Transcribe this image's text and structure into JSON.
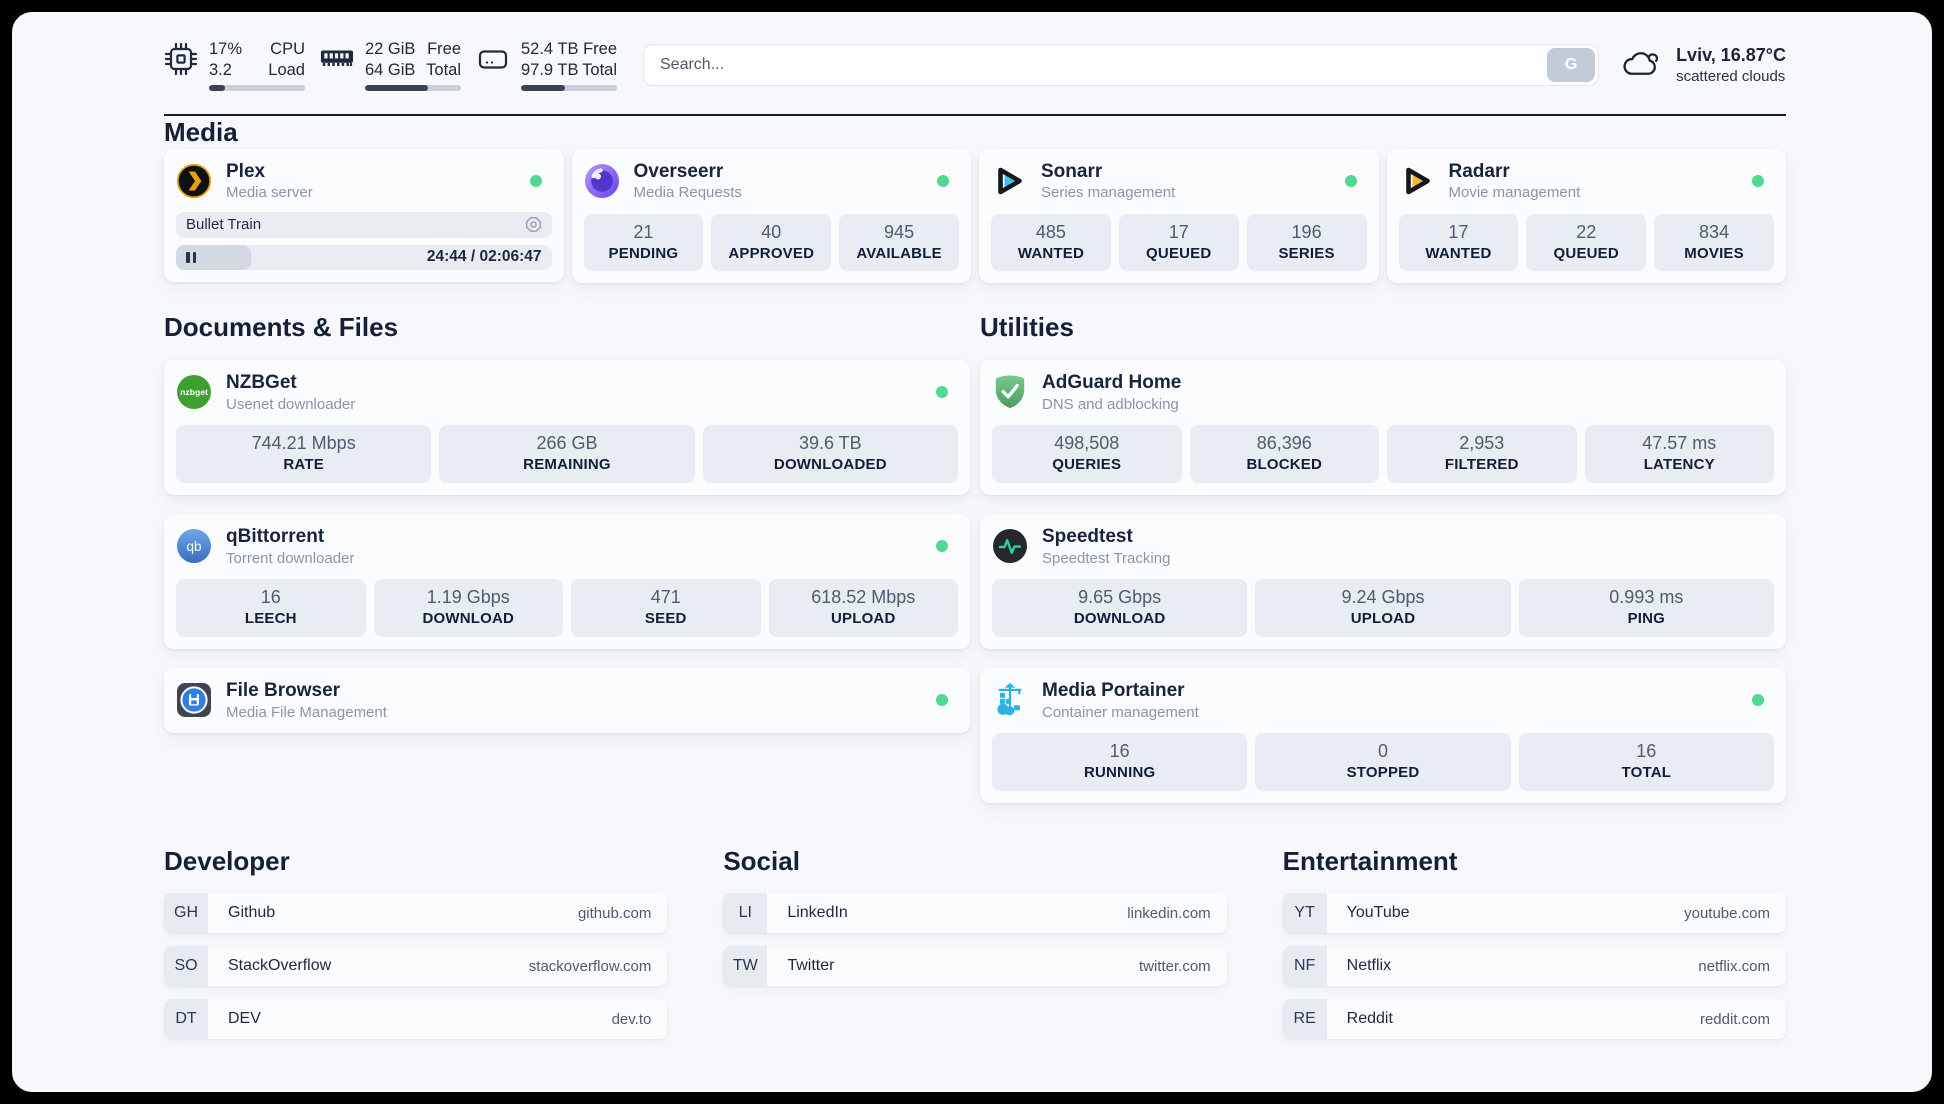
{
  "header": {
    "cpu": {
      "value": "17%",
      "value2": "3.2",
      "label": "CPU",
      "label2": "Load",
      "fill": 17
    },
    "ram": {
      "value": "22 GiB",
      "value2": "64 GiB",
      "label": "Free",
      "label2": "Total",
      "fill": 66
    },
    "disk": {
      "value": "52.4 TB",
      "value2": "97.9 TB",
      "label": "Free",
      "label2": "Total",
      "fill": 46
    },
    "search": {
      "placeholder": "Search...",
      "button": "G"
    },
    "weather": {
      "location": "Lviv, 16.87°C",
      "condition": "scattered clouds"
    }
  },
  "sections": {
    "media": {
      "title": "Media",
      "apps": [
        {
          "logo": "plex",
          "name": "Plex",
          "subtitle": "Media server",
          "online": true,
          "media": {
            "title": "Bullet Train",
            "time": "24:44 / 02:06:47",
            "progress": 20
          },
          "stats": []
        },
        {
          "logo": "overseerr",
          "name": "Overseerr",
          "subtitle": "Media Requests",
          "online": true,
          "stats": [
            {
              "value": "21",
              "label": "PENDING"
            },
            {
              "value": "40",
              "label": "APPROVED"
            },
            {
              "value": "945",
              "label": "AVAILABLE"
            }
          ]
        },
        {
          "logo": "sonarr",
          "name": "Sonarr",
          "subtitle": "Series management",
          "online": true,
          "stats": [
            {
              "value": "485",
              "label": "WANTED"
            },
            {
              "value": "17",
              "label": "QUEUED"
            },
            {
              "value": "196",
              "label": "SERIES"
            }
          ]
        },
        {
          "logo": "radarr",
          "name": "Radarr",
          "subtitle": "Movie management",
          "online": true,
          "stats": [
            {
              "value": "17",
              "label": "WANTED"
            },
            {
              "value": "22",
              "label": "QUEUED"
            },
            {
              "value": "834",
              "label": "MOVIES"
            }
          ]
        }
      ]
    },
    "documents": {
      "title": "Documents & Files",
      "apps": [
        {
          "logo": "nzbget",
          "name": "NZBGet",
          "subtitle": "Usenet downloader",
          "online": true,
          "stats": [
            {
              "value": "744.21 Mbps",
              "label": "RATE"
            },
            {
              "value": "266 GB",
              "label": "REMAINING"
            },
            {
              "value": "39.6 TB",
              "label": "DOWNLOADED"
            }
          ]
        },
        {
          "logo": "qbittorrent",
          "name": "qBittorrent",
          "subtitle": "Torrent downloader",
          "online": true,
          "stats": [
            {
              "value": "16",
              "label": "LEECH"
            },
            {
              "value": "1.19 Gbps",
              "label": "DOWNLOAD"
            },
            {
              "value": "471",
              "label": "SEED"
            },
            {
              "value": "618.52 Mbps",
              "label": "UPLOAD"
            }
          ]
        },
        {
          "logo": "filebrowser",
          "name": "File Browser",
          "subtitle": "Media File Management",
          "online": true,
          "stats": []
        }
      ]
    },
    "utilities": {
      "title": "Utilities",
      "apps": [
        {
          "logo": "adguard",
          "name": "AdGuard Home",
          "subtitle": "DNS and adblocking",
          "online": false,
          "stats": [
            {
              "value": "498,508",
              "label": "QUERIES"
            },
            {
              "value": "86,396",
              "label": "BLOCKED"
            },
            {
              "value": "2,953",
              "label": "FILTERED"
            },
            {
              "value": "47.57 ms",
              "label": "LATENCY"
            }
          ]
        },
        {
          "logo": "speedtest",
          "name": "Speedtest",
          "subtitle": "Speedtest Tracking",
          "online": false,
          "stats": [
            {
              "value": "9.65 Gbps",
              "label": "DOWNLOAD"
            },
            {
              "value": "9.24 Gbps",
              "label": "UPLOAD"
            },
            {
              "value": "0.993 ms",
              "label": "PING"
            }
          ]
        },
        {
          "logo": "portainer",
          "name": "Media Portainer",
          "subtitle": "Container management",
          "online": true,
          "stats": [
            {
              "value": "16",
              "label": "RUNNING"
            },
            {
              "value": "0",
              "label": "STOPPED"
            },
            {
              "value": "16",
              "label": "TOTAL"
            }
          ]
        }
      ]
    }
  },
  "bookmarks": [
    {
      "title": "Developer",
      "links": [
        {
          "abbr": "GH",
          "name": "Github",
          "domain": "github.com"
        },
        {
          "abbr": "SO",
          "name": "StackOverflow",
          "domain": "stackoverflow.com"
        },
        {
          "abbr": "DT",
          "name": "DEV",
          "domain": "dev.to"
        }
      ]
    },
    {
      "title": "Social",
      "links": [
        {
          "abbr": "LI",
          "name": "LinkedIn",
          "domain": "linkedin.com"
        },
        {
          "abbr": "TW",
          "name": "Twitter",
          "domain": "twitter.com"
        }
      ]
    },
    {
      "title": "Entertainment",
      "links": [
        {
          "abbr": "YT",
          "name": "YouTube",
          "domain": "youtube.com"
        },
        {
          "abbr": "NF",
          "name": "Netflix",
          "domain": "netflix.com"
        },
        {
          "abbr": "RE",
          "name": "Reddit",
          "domain": "reddit.com"
        }
      ]
    }
  ],
  "colors": {
    "status_online": "#52d893",
    "progress_fill": "#3a4454",
    "page_bg": "#f6f8fb",
    "tile_bg": "#e8edf4"
  }
}
